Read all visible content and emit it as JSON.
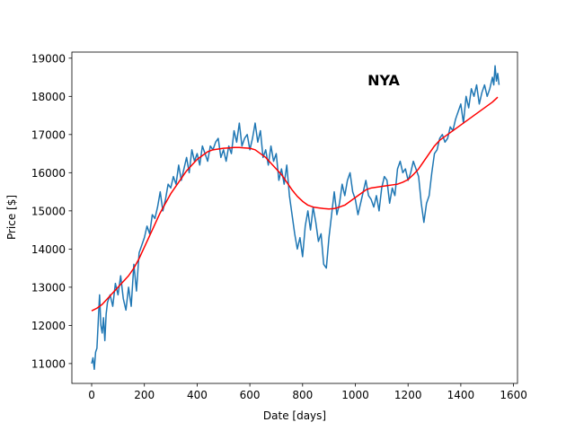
{
  "chart_data": {
    "type": "line",
    "title": "NYA",
    "xlabel": "Date [days]",
    "ylabel": "Price [$]",
    "xlim": [
      -75,
      1615
    ],
    "ylim": [
      10480,
      19160
    ],
    "xticks": [
      0,
      200,
      400,
      600,
      800,
      1000,
      1200,
      1400,
      1600
    ],
    "yticks": [
      11000,
      12000,
      13000,
      14000,
      15000,
      16000,
      17000,
      18000,
      19000
    ],
    "grid": false,
    "series": [
      {
        "color": "#1f77b4",
        "x": [
          0,
          5,
          10,
          15,
          20,
          25,
          30,
          35,
          40,
          45,
          50,
          55,
          60,
          70,
          80,
          90,
          100,
          110,
          120,
          130,
          140,
          150,
          160,
          170,
          180,
          190,
          200,
          210,
          220,
          230,
          240,
          250,
          260,
          270,
          280,
          290,
          300,
          310,
          320,
          330,
          340,
          350,
          360,
          370,
          380,
          390,
          400,
          410,
          420,
          430,
          440,
          450,
          460,
          470,
          480,
          490,
          500,
          510,
          520,
          530,
          540,
          550,
          560,
          570,
          580,
          590,
          600,
          610,
          620,
          630,
          640,
          650,
          660,
          670,
          680,
          690,
          700,
          710,
          720,
          730,
          740,
          750,
          760,
          770,
          780,
          790,
          800,
          810,
          820,
          830,
          840,
          850,
          860,
          870,
          880,
          890,
          900,
          910,
          920,
          930,
          940,
          950,
          960,
          970,
          980,
          990,
          1000,
          1010,
          1020,
          1030,
          1040,
          1050,
          1060,
          1070,
          1080,
          1090,
          1100,
          1110,
          1120,
          1130,
          1140,
          1150,
          1160,
          1170,
          1180,
          1190,
          1200,
          1210,
          1220,
          1230,
          1240,
          1250,
          1260,
          1270,
          1280,
          1290,
          1300,
          1310,
          1320,
          1330,
          1340,
          1350,
          1360,
          1370,
          1380,
          1390,
          1400,
          1410,
          1420,
          1430,
          1440,
          1450,
          1460,
          1470,
          1480,
          1490,
          1500,
          1510,
          1520,
          1525,
          1530,
          1535,
          1540,
          1545
        ],
        "y": [
          11000,
          11150,
          10850,
          11300,
          11400,
          12100,
          12800,
          12000,
          11800,
          12200,
          11600,
          12300,
          12600,
          12800,
          12500,
          13100,
          12800,
          13300,
          12700,
          12400,
          13000,
          12500,
          13600,
          12900,
          13900,
          14100,
          14300,
          14600,
          14400,
          14900,
          14800,
          15100,
          15500,
          15000,
          15300,
          15700,
          15600,
          15900,
          15700,
          16200,
          15800,
          16100,
          16400,
          16000,
          16600,
          16300,
          16500,
          16200,
          16700,
          16500,
          16300,
          16700,
          16600,
          16800,
          16900,
          16400,
          16600,
          16300,
          16700,
          16500,
          17100,
          16800,
          17300,
          16700,
          16900,
          17000,
          16600,
          16900,
          17300,
          16800,
          17100,
          16400,
          16600,
          16200,
          16700,
          16300,
          16500,
          15800,
          16100,
          15700,
          16200,
          15400,
          14900,
          14400,
          14000,
          14300,
          13800,
          14600,
          15000,
          14500,
          15100,
          14700,
          14200,
          14400,
          13600,
          13500,
          14300,
          14900,
          15500,
          14900,
          15200,
          15700,
          15400,
          15800,
          16000,
          15500,
          15300,
          14900,
          15200,
          15500,
          15800,
          15400,
          15300,
          15100,
          15400,
          15000,
          15600,
          15900,
          15800,
          15200,
          15600,
          15400,
          16100,
          16300,
          16000,
          16100,
          15800,
          16000,
          16300,
          16100,
          15900,
          15200,
          14700,
          15200,
          15400,
          16000,
          16500,
          16600,
          16900,
          17000,
          16800,
          16900,
          17200,
          17100,
          17400,
          17600,
          17800,
          17300,
          18000,
          17700,
          18200,
          18000,
          18300,
          17800,
          18100,
          18300,
          18000,
          18200,
          18500,
          18300,
          18800,
          18400,
          18600,
          18300
        ]
      },
      {
        "color": "#ff0000",
        "x": [
          0,
          20,
          40,
          60,
          80,
          100,
          120,
          140,
          160,
          180,
          200,
          220,
          240,
          260,
          280,
          300,
          320,
          340,
          360,
          380,
          400,
          420,
          440,
          460,
          480,
          500,
          520,
          540,
          560,
          580,
          600,
          620,
          640,
          660,
          680,
          700,
          720,
          740,
          760,
          780,
          800,
          820,
          840,
          860,
          880,
          900,
          920,
          940,
          960,
          980,
          1000,
          1020,
          1040,
          1060,
          1080,
          1100,
          1120,
          1140,
          1160,
          1180,
          1200,
          1220,
          1240,
          1260,
          1280,
          1300,
          1320,
          1340,
          1360,
          1380,
          1400,
          1420,
          1440,
          1460,
          1480,
          1500,
          1520,
          1540
        ],
        "y": [
          12380,
          12450,
          12550,
          12700,
          12850,
          13000,
          13150,
          13300,
          13500,
          13750,
          14050,
          14350,
          14650,
          14950,
          15200,
          15450,
          15650,
          15850,
          16050,
          16200,
          16350,
          16450,
          16550,
          16600,
          16620,
          16640,
          16650,
          16660,
          16660,
          16650,
          16640,
          16600,
          16500,
          16400,
          16250,
          16100,
          15950,
          15750,
          15550,
          15380,
          15250,
          15150,
          15100,
          15080,
          15060,
          15050,
          15060,
          15100,
          15150,
          15250,
          15350,
          15450,
          15550,
          15600,
          15620,
          15640,
          15660,
          15680,
          15700,
          15750,
          15820,
          15950,
          16100,
          16300,
          16500,
          16700,
          16850,
          16950,
          17050,
          17150,
          17250,
          17350,
          17450,
          17550,
          17650,
          17750,
          17850,
          17980
        ]
      }
    ]
  }
}
